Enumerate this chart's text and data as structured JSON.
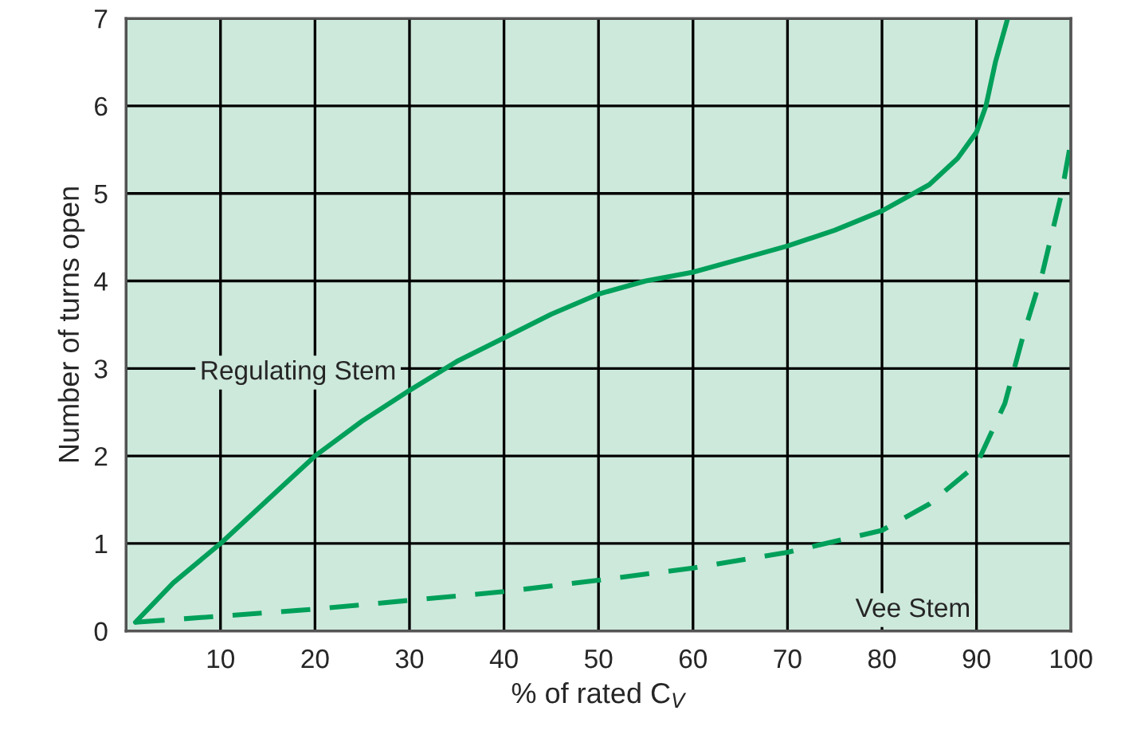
{
  "chart_data": {
    "type": "line",
    "xlabel": "% of rated C$_{V}$",
    "ylabel": "Number of turns open",
    "xlim": [
      0,
      100
    ],
    "ylim": [
      0,
      7
    ],
    "xticks": [
      {
        "value": 0,
        "label": null
      },
      10,
      20,
      30,
      40,
      50,
      60,
      70,
      80,
      90,
      100
    ],
    "yticks": [
      0,
      1,
      2,
      3,
      4,
      5,
      6,
      7
    ],
    "grid": true,
    "legend": false,
    "series": [
      {
        "name": "Regulating Stem",
        "color": "#00a05a",
        "line_style": "solid",
        "x": [
          1,
          5,
          10,
          15,
          20,
          25,
          30,
          35,
          40,
          45,
          50,
          55,
          60,
          65,
          70,
          75,
          80,
          85,
          88,
          90,
          91,
          92,
          93.3
        ],
        "values": [
          0.1,
          0.55,
          1,
          1.5,
          2,
          2.4,
          2.75,
          3.08,
          3.35,
          3.62,
          3.85,
          4.0,
          4.1,
          4.25,
          4.4,
          4.58,
          4.8,
          5.1,
          5.4,
          5.7,
          6.0,
          6.5,
          7
        ]
      },
      {
        "name": "Vee Stem",
        "color": "#00a05a",
        "line_style": "dashed",
        "x": [
          1,
          10,
          20,
          30,
          40,
          50,
          60,
          70,
          80,
          85,
          90,
          93,
          95,
          97,
          99,
          100
        ],
        "values": [
          0.1,
          0.17,
          0.25,
          0.35,
          0.45,
          0.58,
          0.72,
          0.9,
          1.15,
          1.45,
          1.9,
          2.6,
          3.4,
          4.1,
          5.0,
          5.6
        ]
      }
    ]
  }
}
